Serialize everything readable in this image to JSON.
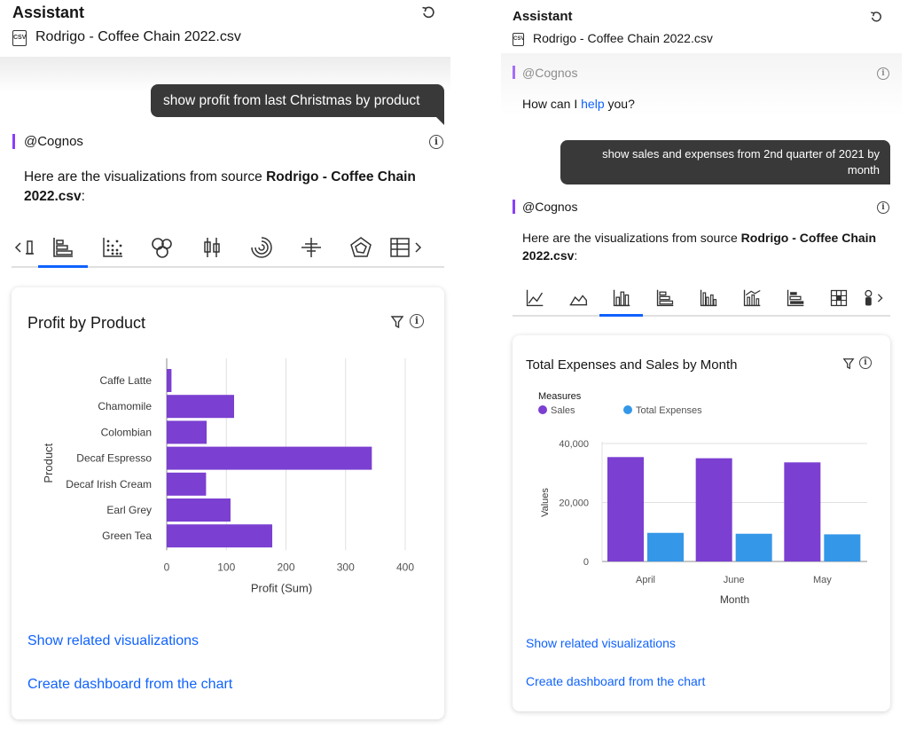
{
  "left": {
    "title": "Assistant",
    "file_icon": "csv-file-icon",
    "file_icon_text": "CSV",
    "file_name": "Rodrigo - Coffee Chain 2022.csv",
    "user_message": "show profit from last Christmas by product",
    "bot_name": "@Cognos",
    "bot_text_prefix": "Here are the visualizations from source ",
    "bot_text_bold": "Rodrigo - Coffee Chain 2022.csv",
    "bot_text_suffix": ":",
    "viz_icons": [
      "bullet-chart-icon",
      "horizontal-bar-icon",
      "dot-matrix-icon",
      "bubble-icon",
      "boxplot-icon",
      "radial-icon",
      "cross-icon",
      "radar-icon",
      "table-icon"
    ],
    "selected_viz": "horizontal-bar-icon",
    "card": {
      "title": "Profit by Product",
      "link_related": "Show related visualizations",
      "link_dashboard": "Create dashboard from the chart"
    }
  },
  "right": {
    "title": "Assistant",
    "file_icon": "csv-file-icon",
    "file_icon_text": "CSV",
    "file_name": "Rodrigo - Coffee Chain 2022.csv",
    "bot_name": "@Cognos",
    "greeting_prefix": "How can I ",
    "greeting_link": "help",
    "greeting_suffix": " you?",
    "user_message_line1": "show sales and expenses from 2nd quarter of 2021 by",
    "user_message_line2": "month",
    "bot_text_prefix": "Here are the visualizations from source ",
    "bot_text_bold": "Rodrigo - Coffee Chain",
    "bot_text_bold2": "2022.csv",
    "bot_text_suffix": ":",
    "viz_icons": [
      "line-chart-icon",
      "area-chart-icon",
      "column-chart-icon",
      "bar-chart-icon",
      "clustered-column-icon",
      "column-line-icon",
      "stacked-bar-icon",
      "heatmap-icon",
      "more-viz-icon"
    ],
    "selected_viz": "column-chart-icon",
    "card": {
      "title": "Total Expenses and Sales by Month",
      "link_related": "Show related visualizations",
      "link_dashboard": "Create dashboard from the chart"
    }
  },
  "chart_data": [
    {
      "type": "bar",
      "orientation": "horizontal",
      "title": "Profit by Product",
      "xlabel": "Profit (Sum)",
      "ylabel": "Product",
      "categories": [
        "Caffe Latte",
        "Chamomile",
        "Colombian",
        "Decaf Espresso",
        "Decaf Irish Cream",
        "Earl Grey",
        "Green Tea"
      ],
      "values": [
        8,
        113,
        67,
        344,
        66,
        107,
        177
      ],
      "xlim": [
        0,
        400
      ],
      "xticks": [
        "0",
        "100",
        "200",
        "300",
        "400"
      ],
      "color": "#7b3fd1",
      "grid": true
    },
    {
      "type": "bar",
      "orientation": "vertical",
      "title": "Total Expenses and Sales by Month",
      "xlabel": "Month",
      "ylabel": "Values",
      "legend_title": "Measures",
      "legend_position": "top-left",
      "categories": [
        "April",
        "June",
        "May"
      ],
      "series": [
        {
          "name": "Sales",
          "color": "#7b3fd1",
          "values": [
            35400,
            35000,
            33600
          ]
        },
        {
          "name": "Total Expenses",
          "color": "#3497e8",
          "values": [
            9700,
            9400,
            9200
          ]
        }
      ],
      "ylim": [
        0,
        40000
      ],
      "yticks": [
        "0",
        "20,000",
        "40,000"
      ],
      "grid": true
    }
  ]
}
